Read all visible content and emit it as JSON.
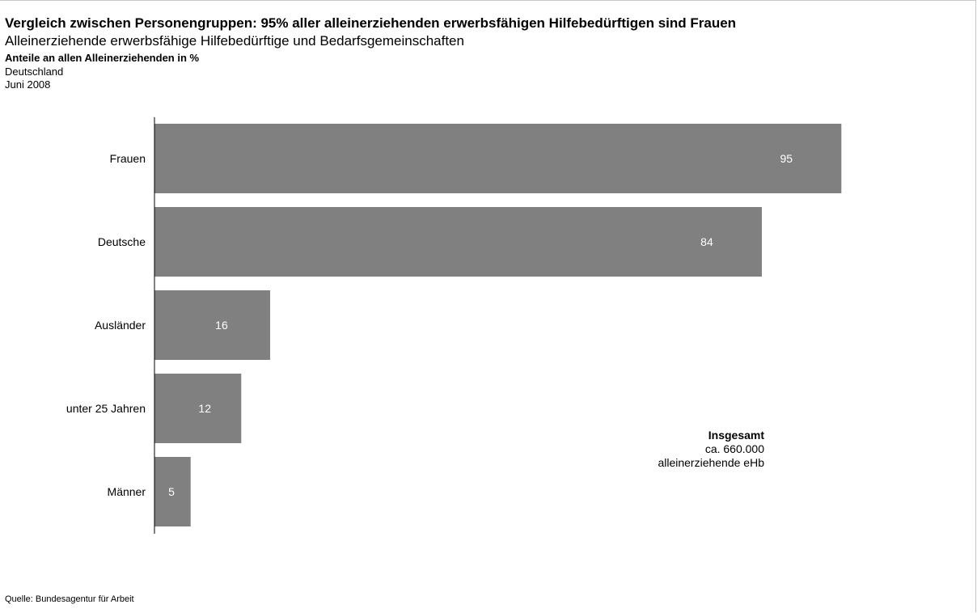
{
  "header": {
    "title": "Vergleich zwischen Personengruppen: 95% aller alleinerziehenden erwerbsfähigen Hilfebedürftigen sind Frauen",
    "subtitle": "Alleinerziehende erwerbsfähige Hilfebedürftige und Bedarfsgemeinschaften",
    "unit": "Anteile an allen Alleinerziehenden in %",
    "region": "Deutschland",
    "date": "Juni 2008"
  },
  "chart_data": {
    "type": "bar",
    "orientation": "horizontal",
    "categories": [
      "Frauen",
      "Deutsche",
      "Ausländer",
      "unter 25 Jahren",
      "Männer"
    ],
    "values": [
      95,
      84,
      16,
      12,
      5
    ],
    "value_labels": [
      "95",
      "84",
      "16",
      "12",
      "5"
    ],
    "xlim": [
      0,
      100
    ],
    "grid": false,
    "bar_color": "#808080",
    "value_label_color": "#ffffff"
  },
  "annotation": {
    "title": "Insgesamt",
    "line1": "ca. 660.000",
    "line2": "alleinerziehende eHb"
  },
  "footer": {
    "source": "Quelle: Bundesagentur für Arbeit"
  }
}
